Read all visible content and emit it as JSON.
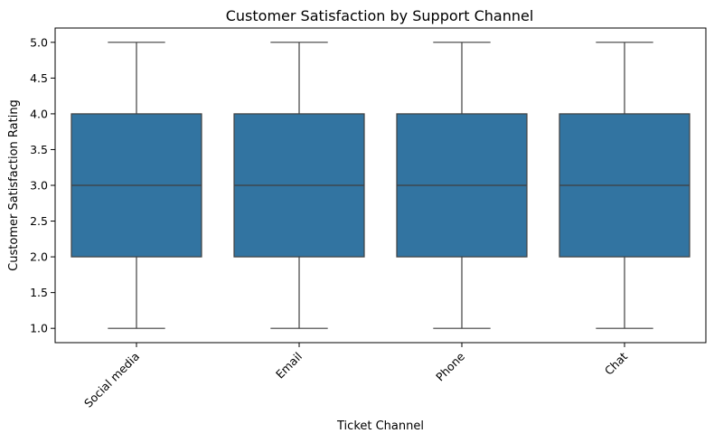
{
  "chart_data": {
    "type": "box",
    "title": "Customer Satisfaction by Support Channel",
    "xlabel": "Ticket Channel",
    "ylabel": "Customer Satisfaction Rating",
    "categories": [
      "Social media",
      "Email",
      "Phone",
      "Chat"
    ],
    "boxes": [
      {
        "category": "Social media",
        "min": 1.0,
        "q1": 2.0,
        "median": 3.0,
        "q3": 4.0,
        "max": 5.0
      },
      {
        "category": "Email",
        "min": 1.0,
        "q1": 2.0,
        "median": 3.0,
        "q3": 4.0,
        "max": 5.0
      },
      {
        "category": "Phone",
        "min": 1.0,
        "q1": 2.0,
        "median": 3.0,
        "q3": 4.0,
        "max": 5.0
      },
      {
        "category": "Chat",
        "min": 1.0,
        "q1": 2.0,
        "median": 3.0,
        "q3": 4.0,
        "max": 5.0
      }
    ],
    "ylim": [
      0.8,
      5.2
    ],
    "yticks": [
      "1.0",
      "1.5",
      "2.0",
      "2.5",
      "3.0",
      "3.5",
      "4.0",
      "4.5",
      "5.0"
    ],
    "grid": false,
    "box_color": "#3274a1",
    "line_color": "#3f3f3f",
    "x_tick_rotation_deg": 45
  }
}
